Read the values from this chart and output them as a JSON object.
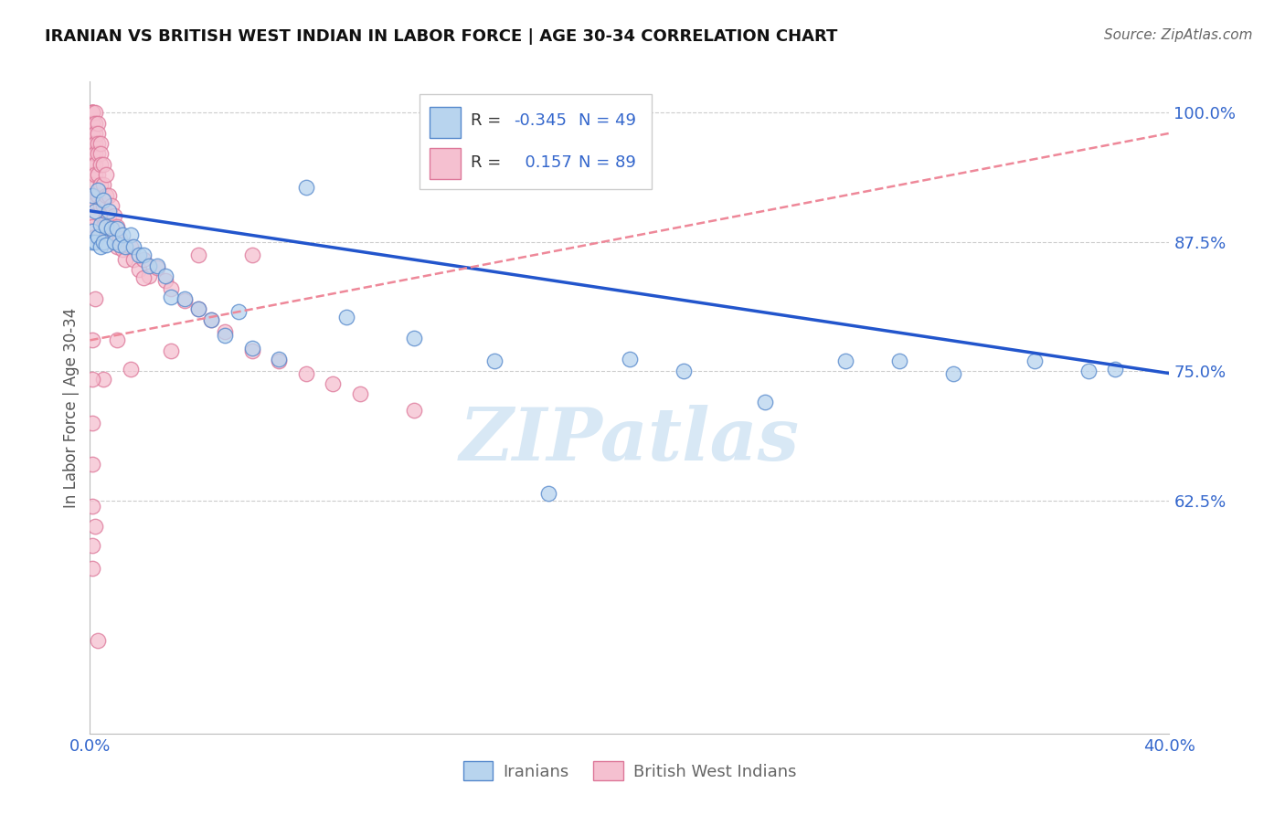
{
  "title": "IRANIAN VS BRITISH WEST INDIAN IN LABOR FORCE | AGE 30-34 CORRELATION CHART",
  "source": "Source: ZipAtlas.com",
  "ylabel": "In Labor Force | Age 30-34",
  "xlim": [
    0.0,
    0.4
  ],
  "ylim": [
    0.4,
    1.03
  ],
  "yticks": [
    0.625,
    0.75,
    0.875,
    1.0
  ],
  "ytick_labels": [
    "62.5%",
    "75.0%",
    "87.5%",
    "100.0%"
  ],
  "xticks": [
    0.0,
    0.05,
    0.1,
    0.15,
    0.2,
    0.25,
    0.3,
    0.35,
    0.4
  ],
  "legend_iranians": "Iranians",
  "legend_bwi": "British West Indians",
  "R_iranians": -0.345,
  "N_iranians": 49,
  "R_bwi": 0.157,
  "N_bwi": 89,
  "color_iranians_fill": "#b8d4ee",
  "color_iranians_edge": "#5588cc",
  "color_bwi_fill": "#f5c0d0",
  "color_bwi_edge": "#dd7799",
  "color_line_iranians": "#2255cc",
  "color_line_bwi": "#ee8899",
  "watermark": "ZIPatlas",
  "watermark_color": "#d8e8f5",
  "title_color": "#111111",
  "source_color": "#666666",
  "tick_color": "#3366cc",
  "grid_color": "#cccccc",
  "iranians_x": [
    0.001,
    0.001,
    0.001,
    0.002,
    0.002,
    0.003,
    0.003,
    0.004,
    0.004,
    0.005,
    0.005,
    0.006,
    0.006,
    0.007,
    0.008,
    0.009,
    0.01,
    0.011,
    0.012,
    0.013,
    0.015,
    0.016,
    0.018,
    0.02,
    0.022,
    0.025,
    0.028,
    0.03,
    0.035,
    0.04,
    0.045,
    0.05,
    0.055,
    0.06,
    0.07,
    0.08,
    0.095,
    0.12,
    0.15,
    0.17,
    0.2,
    0.22,
    0.25,
    0.28,
    0.3,
    0.32,
    0.35,
    0.37,
    0.38
  ],
  "iranians_y": [
    0.92,
    0.885,
    0.875,
    0.905,
    0.875,
    0.925,
    0.88,
    0.892,
    0.87,
    0.915,
    0.875,
    0.89,
    0.872,
    0.905,
    0.888,
    0.875,
    0.888,
    0.872,
    0.882,
    0.87,
    0.882,
    0.87,
    0.862,
    0.862,
    0.852,
    0.852,
    0.842,
    0.822,
    0.82,
    0.81,
    0.8,
    0.785,
    0.808,
    0.772,
    0.762,
    0.928,
    0.802,
    0.782,
    0.76,
    0.632,
    0.762,
    0.75,
    0.72,
    0.76,
    0.76,
    0.748,
    0.76,
    0.75,
    0.752
  ],
  "bwi_x": [
    0.001,
    0.001,
    0.001,
    0.001,
    0.001,
    0.001,
    0.001,
    0.001,
    0.001,
    0.001,
    0.001,
    0.001,
    0.001,
    0.001,
    0.001,
    0.001,
    0.002,
    0.002,
    0.002,
    0.002,
    0.002,
    0.002,
    0.002,
    0.002,
    0.003,
    0.003,
    0.003,
    0.003,
    0.003,
    0.003,
    0.003,
    0.004,
    0.004,
    0.004,
    0.004,
    0.004,
    0.005,
    0.005,
    0.005,
    0.005,
    0.006,
    0.006,
    0.006,
    0.007,
    0.007,
    0.008,
    0.008,
    0.009,
    0.009,
    0.01,
    0.01,
    0.011,
    0.012,
    0.013,
    0.015,
    0.016,
    0.018,
    0.02,
    0.022,
    0.025,
    0.028,
    0.03,
    0.035,
    0.04,
    0.045,
    0.05,
    0.06,
    0.07,
    0.08,
    0.09,
    0.1,
    0.12,
    0.06,
    0.04,
    0.03,
    0.02,
    0.015,
    0.01,
    0.005,
    0.003,
    0.002,
    0.001,
    0.001,
    0.001,
    0.001,
    0.001,
    0.001,
    0.001,
    0.002
  ],
  "bwi_y": [
    1.0,
    1.0,
    1.0,
    1.0,
    1.0,
    0.99,
    0.98,
    0.97,
    0.96,
    0.95,
    0.94,
    0.93,
    0.92,
    0.91,
    0.9,
    0.89,
    1.0,
    0.99,
    0.98,
    0.97,
    0.96,
    0.95,
    0.94,
    0.88,
    0.99,
    0.98,
    0.97,
    0.96,
    0.94,
    0.92,
    0.88,
    0.97,
    0.96,
    0.95,
    0.93,
    0.91,
    0.95,
    0.93,
    0.91,
    0.89,
    0.94,
    0.92,
    0.9,
    0.92,
    0.9,
    0.91,
    0.89,
    0.9,
    0.88,
    0.89,
    0.87,
    0.878,
    0.868,
    0.858,
    0.87,
    0.858,
    0.848,
    0.858,
    0.842,
    0.85,
    0.838,
    0.83,
    0.818,
    0.81,
    0.8,
    0.788,
    0.77,
    0.76,
    0.748,
    0.738,
    0.728,
    0.712,
    0.862,
    0.862,
    0.77,
    0.84,
    0.752,
    0.78,
    0.742,
    0.49,
    0.6,
    0.582,
    0.56,
    0.62,
    0.66,
    0.7,
    0.742,
    0.78,
    0.82
  ],
  "iran_trend_x0": 0.0,
  "iran_trend_y0": 0.905,
  "iran_trend_x1": 0.4,
  "iran_trend_y1": 0.748,
  "bwi_trend_x0": 0.0,
  "bwi_trend_y0": 0.78,
  "bwi_trend_x1": 0.4,
  "bwi_trend_y1": 0.98
}
